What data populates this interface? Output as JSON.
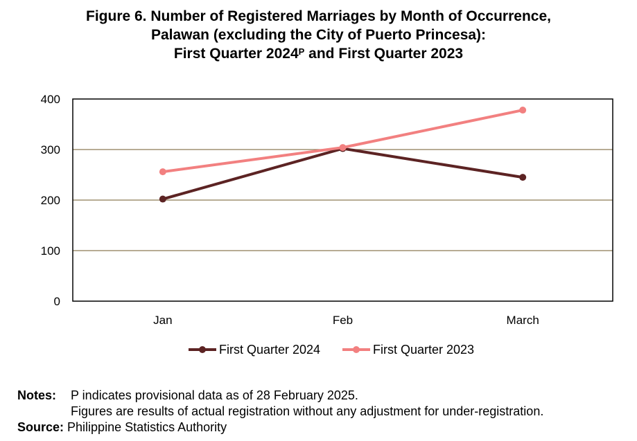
{
  "title": {
    "line1": "Figure 6. Number of Registered Marriages by Month of Occurrence,",
    "line2": "Palawan (excluding the City of Puerto Princesa):",
    "line3_pre": "First Quarter 2024",
    "line3_sup": "P",
    "line3_post": " and First Quarter 2023"
  },
  "chart_data": {
    "type": "line",
    "categories": [
      "Jan",
      "Feb",
      "March"
    ],
    "ylim": [
      0,
      400
    ],
    "yticks": [
      0,
      100,
      200,
      300,
      400
    ],
    "grid": "horizontal",
    "legend_position": "bottom",
    "series": [
      {
        "name": "First Quarter 2024",
        "values": [
          202,
          302,
          245
        ],
        "color": "#5c2323"
      },
      {
        "name": "First Quarter 2023",
        "values": [
          256,
          304,
          378
        ],
        "color": "#f28080"
      }
    ]
  },
  "notes": {
    "notes_label": "Notes:",
    "note1": "P indicates provisional data as of 28 February 2025.",
    "note2": "Figures are results of actual registration without any adjustment for under-registration.",
    "source_label": "Source:",
    "source": "Philippine Statistics Authority"
  }
}
